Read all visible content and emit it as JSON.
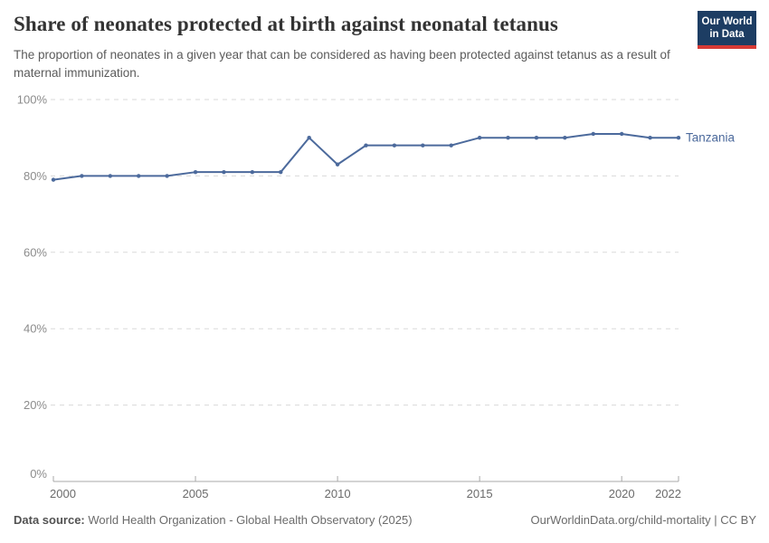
{
  "header": {
    "title": "Share of neonates protected at birth against neonatal tetanus",
    "subtitle": "The proportion of neonates in a given year that can be considered as having been protected against tetanus as a result of maternal immunization.",
    "logo": {
      "line1": "Our World",
      "line2": "in Data"
    }
  },
  "chart_data": {
    "type": "line",
    "title": "Share of neonates protected at birth against neonatal tetanus",
    "xlabel": "",
    "ylabel": "",
    "unit": "%",
    "x": [
      2000,
      2001,
      2002,
      2003,
      2004,
      2005,
      2006,
      2007,
      2008,
      2009,
      2010,
      2011,
      2012,
      2013,
      2014,
      2015,
      2016,
      2017,
      2018,
      2019,
      2020,
      2021,
      2022
    ],
    "series": [
      {
        "name": "Tanzania",
        "color": "#4C6A9C",
        "values": [
          79,
          80,
          80,
          80,
          80,
          81,
          81,
          81,
          81,
          90,
          83,
          88,
          88,
          88,
          88,
          90,
          90,
          90,
          90,
          91,
          91,
          90,
          90
        ]
      }
    ],
    "xlim": [
      2000,
      2022
    ],
    "ylim": [
      0,
      100
    ],
    "x_ticks": [
      2000,
      2005,
      2010,
      2015,
      2020,
      2022
    ],
    "y_ticks": [
      {
        "v": 0,
        "label": "0%"
      },
      {
        "v": 20,
        "label": "20%"
      },
      {
        "v": 40,
        "label": "40%"
      },
      {
        "v": 60,
        "label": "60%"
      },
      {
        "v": 80,
        "label": "80%"
      },
      {
        "v": 100,
        "label": "100%"
      }
    ],
    "grid": "horizontal-dashed",
    "legend_position": "line-end-label"
  },
  "footer": {
    "source_label": "Data source:",
    "source_text": "World Health Organization - Global Health Observatory (2025)",
    "link_text": "OurWorldinData.org/child-mortality | CC BY"
  },
  "colors": {
    "accent": "#4C6A9C",
    "logo_bg": "#1d3d63",
    "logo_stripe": "#d73a35",
    "gridline": "#dadada",
    "axis": "#a8a8a8"
  }
}
